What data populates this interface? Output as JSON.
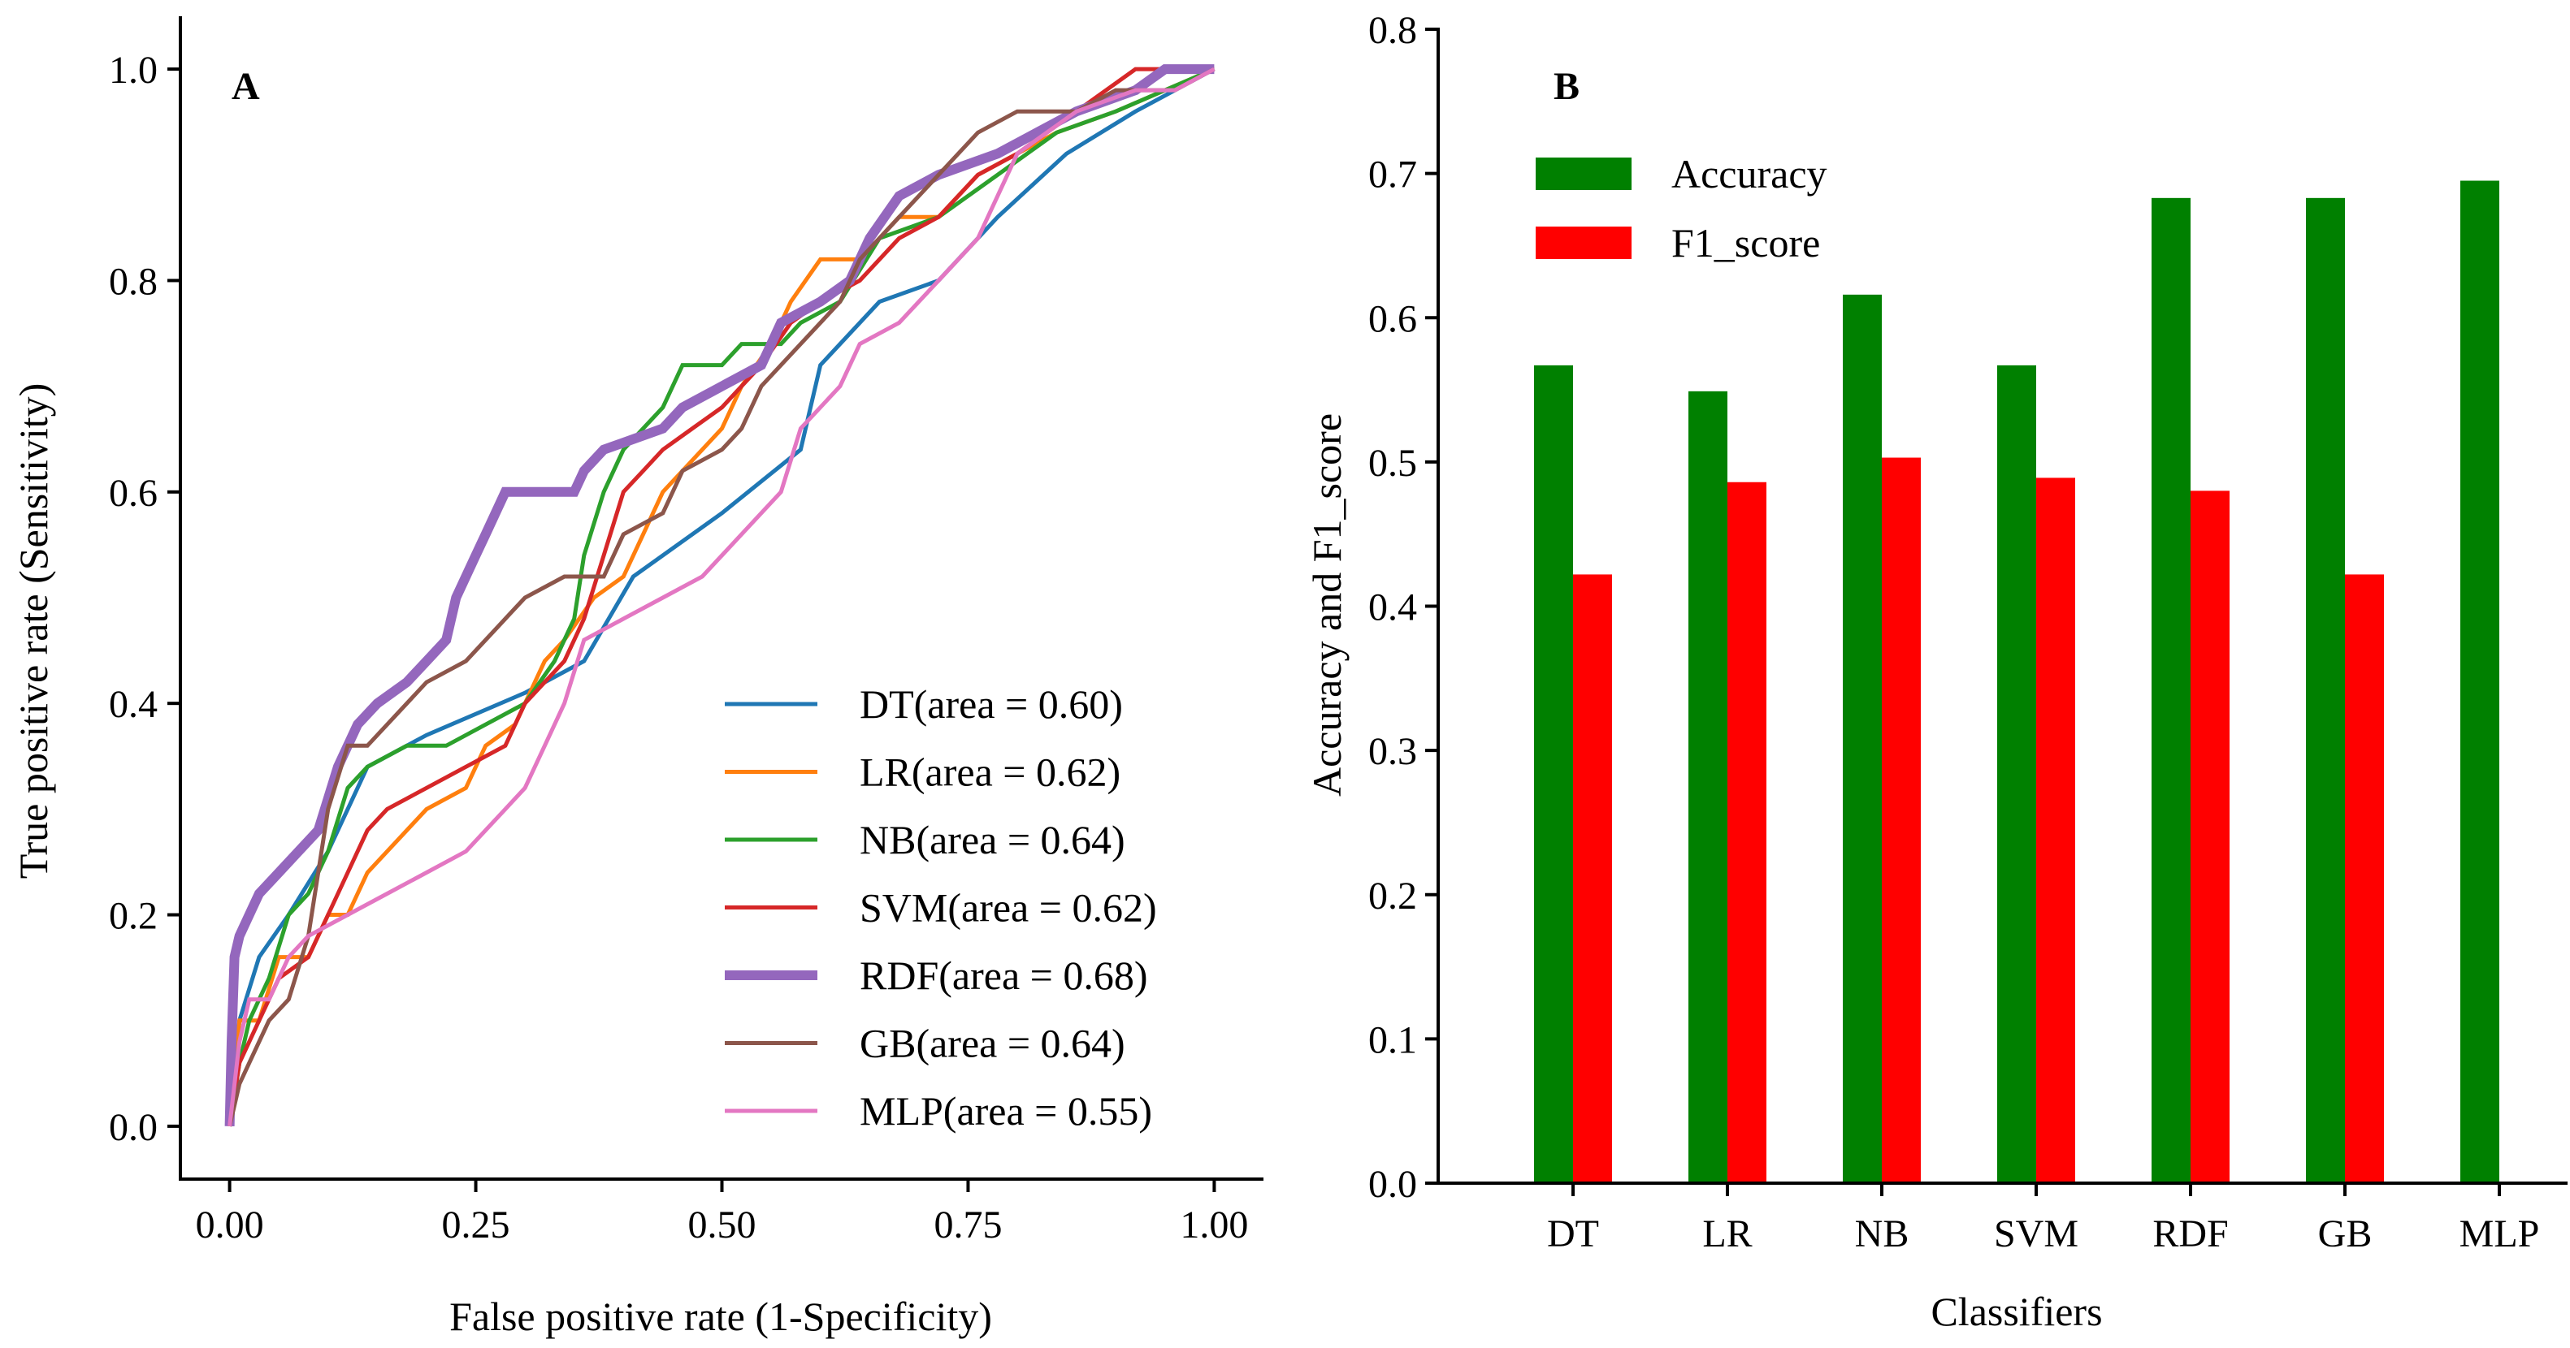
{
  "chart_data": [
    {
      "panel": "A",
      "type": "line",
      "xlabel": "False positive rate (1-Specificity)",
      "ylabel": "True positive rate (Sensitivity)",
      "xlim": [
        -0.05,
        1.05
      ],
      "ylim": [
        -0.05,
        1.05
      ],
      "xticks": [
        "0.00",
        "0.25",
        "0.50",
        "0.75",
        "1.00"
      ],
      "yticks": [
        "0.0",
        "0.2",
        "0.4",
        "0.6",
        "0.8",
        "1.0"
      ],
      "xtick_values": [
        0,
        0.25,
        0.5,
        0.75,
        1.0
      ],
      "ytick_values": [
        0,
        0.2,
        0.4,
        0.6,
        0.8,
        1.0
      ],
      "legend_position": "lower-right",
      "series": [
        {
          "name": "DT",
          "label": "DT(area = 0.60)",
          "color": "#1f77b4",
          "width": 5,
          "points": [
            [
              0,
              0
            ],
            [
              0.01,
              0.1
            ],
            [
              0.03,
              0.16
            ],
            [
              0.06,
              0.2
            ],
            [
              0.1,
              0.26
            ],
            [
              0.14,
              0.34
            ],
            [
              0.2,
              0.37
            ],
            [
              0.3,
              0.41
            ],
            [
              0.36,
              0.44
            ],
            [
              0.41,
              0.52
            ],
            [
              0.5,
              0.58
            ],
            [
              0.58,
              0.64
            ],
            [
              0.6,
              0.72
            ],
            [
              0.66,
              0.78
            ],
            [
              0.72,
              0.8
            ],
            [
              0.78,
              0.86
            ],
            [
              0.85,
              0.92
            ],
            [
              0.92,
              0.96
            ],
            [
              1.0,
              1.0
            ]
          ]
        },
        {
          "name": "LR",
          "label": "LR(area = 0.62)",
          "color": "#ff7f0e",
          "width": 5,
          "points": [
            [
              0,
              0
            ],
            [
              0.01,
              0.1
            ],
            [
              0.03,
              0.1
            ],
            [
              0.05,
              0.16
            ],
            [
              0.08,
              0.16
            ],
            [
              0.1,
              0.2
            ],
            [
              0.12,
              0.2
            ],
            [
              0.14,
              0.24
            ],
            [
              0.16,
              0.26
            ],
            [
              0.2,
              0.3
            ],
            [
              0.24,
              0.32
            ],
            [
              0.26,
              0.36
            ],
            [
              0.29,
              0.38
            ],
            [
              0.32,
              0.44
            ],
            [
              0.34,
              0.46
            ],
            [
              0.37,
              0.5
            ],
            [
              0.4,
              0.52
            ],
            [
              0.42,
              0.56
            ],
            [
              0.44,
              0.6
            ],
            [
              0.46,
              0.62
            ],
            [
              0.5,
              0.66
            ],
            [
              0.52,
              0.7
            ],
            [
              0.55,
              0.74
            ],
            [
              0.57,
              0.78
            ],
            [
              0.6,
              0.82
            ],
            [
              0.64,
              0.82
            ],
            [
              0.68,
              0.86
            ],
            [
              0.72,
              0.86
            ],
            [
              0.76,
              0.9
            ],
            [
              0.8,
              0.92
            ],
            [
              0.84,
              0.94
            ],
            [
              0.9,
              0.96
            ],
            [
              0.95,
              0.98
            ],
            [
              1.0,
              1.0
            ]
          ]
        },
        {
          "name": "NB",
          "label": "NB(area = 0.64)",
          "color": "#2ca02c",
          "width": 5,
          "points": [
            [
              0,
              0
            ],
            [
              0.01,
              0.06
            ],
            [
              0.02,
              0.1
            ],
            [
              0.04,
              0.14
            ],
            [
              0.06,
              0.2
            ],
            [
              0.08,
              0.22
            ],
            [
              0.1,
              0.26
            ],
            [
              0.12,
              0.32
            ],
            [
              0.14,
              0.34
            ],
            [
              0.18,
              0.36
            ],
            [
              0.22,
              0.36
            ],
            [
              0.26,
              0.38
            ],
            [
              0.3,
              0.4
            ],
            [
              0.33,
              0.44
            ],
            [
              0.35,
              0.48
            ],
            [
              0.36,
              0.54
            ],
            [
              0.38,
              0.6
            ],
            [
              0.4,
              0.64
            ],
            [
              0.44,
              0.68
            ],
            [
              0.46,
              0.72
            ],
            [
              0.5,
              0.72
            ],
            [
              0.52,
              0.74
            ],
            [
              0.56,
              0.74
            ],
            [
              0.58,
              0.76
            ],
            [
              0.62,
              0.78
            ],
            [
              0.66,
              0.84
            ],
            [
              0.72,
              0.86
            ],
            [
              0.78,
              0.9
            ],
            [
              0.84,
              0.94
            ],
            [
              0.9,
              0.96
            ],
            [
              0.95,
              0.98
            ],
            [
              1.0,
              1.0
            ]
          ]
        },
        {
          "name": "SVM",
          "label": "SVM(area = 0.62)",
          "color": "#d62728",
          "width": 5,
          "points": [
            [
              0,
              0
            ],
            [
              0.01,
              0.06
            ],
            [
              0.03,
              0.1
            ],
            [
              0.05,
              0.14
            ],
            [
              0.08,
              0.16
            ],
            [
              0.1,
              0.2
            ],
            [
              0.12,
              0.24
            ],
            [
              0.14,
              0.28
            ],
            [
              0.16,
              0.3
            ],
            [
              0.2,
              0.32
            ],
            [
              0.24,
              0.34
            ],
            [
              0.28,
              0.36
            ],
            [
              0.3,
              0.4
            ],
            [
              0.32,
              0.42
            ],
            [
              0.34,
              0.44
            ],
            [
              0.36,
              0.48
            ],
            [
              0.38,
              0.54
            ],
            [
              0.4,
              0.6
            ],
            [
              0.42,
              0.62
            ],
            [
              0.44,
              0.64
            ],
            [
              0.47,
              0.66
            ],
            [
              0.5,
              0.68
            ],
            [
              0.52,
              0.7
            ],
            [
              0.54,
              0.72
            ],
            [
              0.57,
              0.76
            ],
            [
              0.6,
              0.78
            ],
            [
              0.64,
              0.8
            ],
            [
              0.68,
              0.84
            ],
            [
              0.72,
              0.86
            ],
            [
              0.76,
              0.9
            ],
            [
              0.8,
              0.92
            ],
            [
              0.86,
              0.96
            ],
            [
              0.92,
              1.0
            ],
            [
              1.0,
              1.0
            ]
          ]
        },
        {
          "name": "RDF",
          "label": "RDF(area = 0.68)",
          "color": "#9467bd",
          "width": 12,
          "points": [
            [
              0,
              0
            ],
            [
              0.002,
              0.08
            ],
            [
              0.005,
              0.16
            ],
            [
              0.01,
              0.18
            ],
            [
              0.02,
              0.2
            ],
            [
              0.03,
              0.22
            ],
            [
              0.05,
              0.24
            ],
            [
              0.07,
              0.26
            ],
            [
              0.09,
              0.28
            ],
            [
              0.11,
              0.34
            ],
            [
              0.13,
              0.38
            ],
            [
              0.15,
              0.4
            ],
            [
              0.18,
              0.42
            ],
            [
              0.2,
              0.44
            ],
            [
              0.22,
              0.46
            ],
            [
              0.23,
              0.5
            ],
            [
              0.25,
              0.54
            ],
            [
              0.26,
              0.56
            ],
            [
              0.28,
              0.6
            ],
            [
              0.35,
              0.6
            ],
            [
              0.36,
              0.62
            ],
            [
              0.38,
              0.64
            ],
            [
              0.44,
              0.66
            ],
            [
              0.46,
              0.68
            ],
            [
              0.5,
              0.7
            ],
            [
              0.54,
              0.72
            ],
            [
              0.55,
              0.74
            ],
            [
              0.56,
              0.76
            ],
            [
              0.6,
              0.78
            ],
            [
              0.63,
              0.8
            ],
            [
              0.65,
              0.84
            ],
            [
              0.68,
              0.88
            ],
            [
              0.72,
              0.9
            ],
            [
              0.78,
              0.92
            ],
            [
              0.86,
              0.96
            ],
            [
              0.92,
              0.98
            ],
            [
              0.95,
              1.0
            ],
            [
              1.0,
              1.0
            ]
          ]
        },
        {
          "name": "GB",
          "label": "GB(area = 0.64)",
          "color": "#8c564b",
          "width": 5,
          "points": [
            [
              0,
              0
            ],
            [
              0.01,
              0.04
            ],
            [
              0.02,
              0.06
            ],
            [
              0.04,
              0.1
            ],
            [
              0.06,
              0.12
            ],
            [
              0.08,
              0.18
            ],
            [
              0.1,
              0.3
            ],
            [
              0.12,
              0.36
            ],
            [
              0.14,
              0.36
            ],
            [
              0.16,
              0.38
            ],
            [
              0.2,
              0.42
            ],
            [
              0.24,
              0.44
            ],
            [
              0.28,
              0.48
            ],
            [
              0.3,
              0.5
            ],
            [
              0.34,
              0.52
            ],
            [
              0.38,
              0.52
            ],
            [
              0.4,
              0.56
            ],
            [
              0.44,
              0.58
            ],
            [
              0.46,
              0.62
            ],
            [
              0.5,
              0.64
            ],
            [
              0.52,
              0.66
            ],
            [
              0.54,
              0.7
            ],
            [
              0.58,
              0.74
            ],
            [
              0.62,
              0.78
            ],
            [
              0.64,
              0.82
            ],
            [
              0.68,
              0.86
            ],
            [
              0.72,
              0.9
            ],
            [
              0.76,
              0.94
            ],
            [
              0.8,
              0.96
            ],
            [
              0.86,
              0.96
            ],
            [
              0.9,
              0.98
            ],
            [
              0.96,
              0.98
            ],
            [
              1.0,
              1.0
            ]
          ]
        },
        {
          "name": "MLP",
          "label": "MLP(area = 0.55)",
          "color": "#e377c2",
          "width": 5,
          "points": [
            [
              0,
              0
            ],
            [
              0.01,
              0.08
            ],
            [
              0.02,
              0.12
            ],
            [
              0.04,
              0.12
            ],
            [
              0.06,
              0.16
            ],
            [
              0.08,
              0.18
            ],
            [
              0.12,
              0.2
            ],
            [
              0.16,
              0.22
            ],
            [
              0.2,
              0.24
            ],
            [
              0.24,
              0.26
            ],
            [
              0.28,
              0.3
            ],
            [
              0.3,
              0.32
            ],
            [
              0.32,
              0.36
            ],
            [
              0.34,
              0.4
            ],
            [
              0.36,
              0.46
            ],
            [
              0.4,
              0.48
            ],
            [
              0.44,
              0.5
            ],
            [
              0.48,
              0.52
            ],
            [
              0.52,
              0.56
            ],
            [
              0.56,
              0.6
            ],
            [
              0.58,
              0.66
            ],
            [
              0.62,
              0.7
            ],
            [
              0.64,
              0.74
            ],
            [
              0.68,
              0.76
            ],
            [
              0.72,
              0.8
            ],
            [
              0.76,
              0.84
            ],
            [
              0.78,
              0.88
            ],
            [
              0.8,
              0.92
            ],
            [
              0.86,
              0.96
            ],
            [
              0.92,
              0.98
            ],
            [
              0.96,
              0.98
            ],
            [
              1.0,
              1.0
            ]
          ]
        }
      ]
    },
    {
      "panel": "B",
      "type": "bar",
      "xlabel": "Classifiers",
      "ylabel": "Accuracy and F1_score",
      "ylim": [
        0,
        0.8
      ],
      "yticks": [
        "0.0",
        "0.1",
        "0.2",
        "0.3",
        "0.4",
        "0.5",
        "0.6",
        "0.7",
        "0.8"
      ],
      "ytick_values": [
        0,
        0.1,
        0.2,
        0.3,
        0.4,
        0.5,
        0.6,
        0.7,
        0.8
      ],
      "categories": [
        "DT",
        "LR",
        "NB",
        "SVM",
        "RDF",
        "GB",
        "MLP"
      ],
      "legend_position": "top-left",
      "series": [
        {
          "name": "Accuracy",
          "color": "#008000",
          "values": [
            0.567,
            0.549,
            0.616,
            0.567,
            0.683,
            0.683,
            0.695
          ]
        },
        {
          "name": "F1_score",
          "color": "#ff0000",
          "values": [
            0.422,
            0.486,
            0.503,
            0.489,
            0.48,
            0.422,
            0
          ]
        }
      ]
    }
  ]
}
